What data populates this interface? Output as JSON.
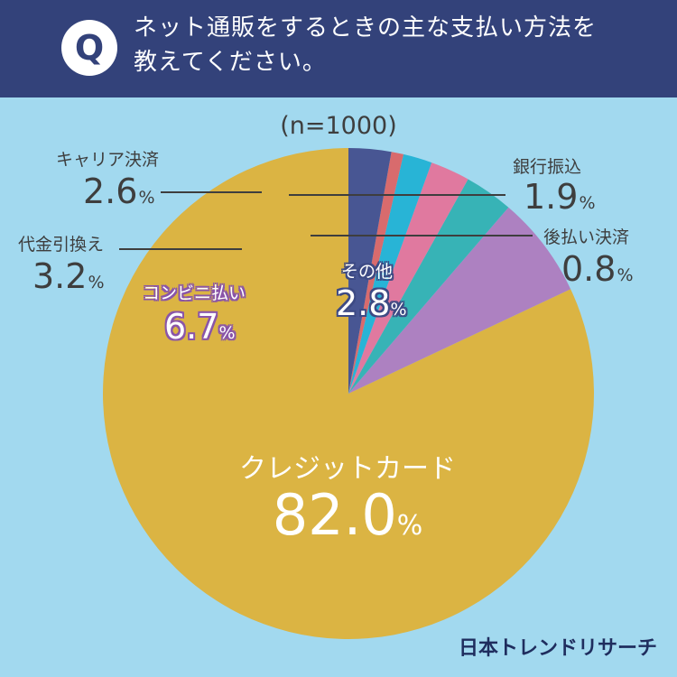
{
  "header": {
    "badge": "Q",
    "question_line1": "ネット通販をするときの主な支払い方法を",
    "question_line2": "教えてください。"
  },
  "sample_label": "(n=1000)",
  "brand": "日本トレンドリサーチ",
  "colors": {
    "background": "#a2d9ef",
    "header": "#33427a",
    "credit": "#dbb443",
    "konbini": "#ad81c1",
    "cod": "#37b3b6",
    "carrier": "#e0799f",
    "bank": "#28b4d6",
    "postpay": "#d86b6d",
    "other": "#485693"
  },
  "chart_data": {
    "type": "pie",
    "title": "ネット通販をするときの主な支払い方法を教えてください。",
    "n": 1000,
    "start": "12 o'clock",
    "direction": "counterclockwise",
    "slices": [
      {
        "label": "クレジットカード",
        "value": 82.0,
        "display": "82.0",
        "color_key": "credit"
      },
      {
        "label": "コンビニ払い",
        "value": 6.7,
        "display": "6.7",
        "color_key": "konbini"
      },
      {
        "label": "代金引換え",
        "value": 3.2,
        "display": "3.2",
        "color_key": "cod"
      },
      {
        "label": "キャリア決済",
        "value": 2.6,
        "display": "2.6",
        "color_key": "carrier"
      },
      {
        "label": "銀行振込",
        "value": 1.9,
        "display": "1.9",
        "color_key": "bank"
      },
      {
        "label": "後払い決済",
        "value": 0.8,
        "display": "0.8",
        "color_key": "postpay"
      },
      {
        "label": "その他",
        "value": 2.8,
        "display": "2.8",
        "color_key": "other"
      }
    ],
    "pct_sign": "%"
  }
}
